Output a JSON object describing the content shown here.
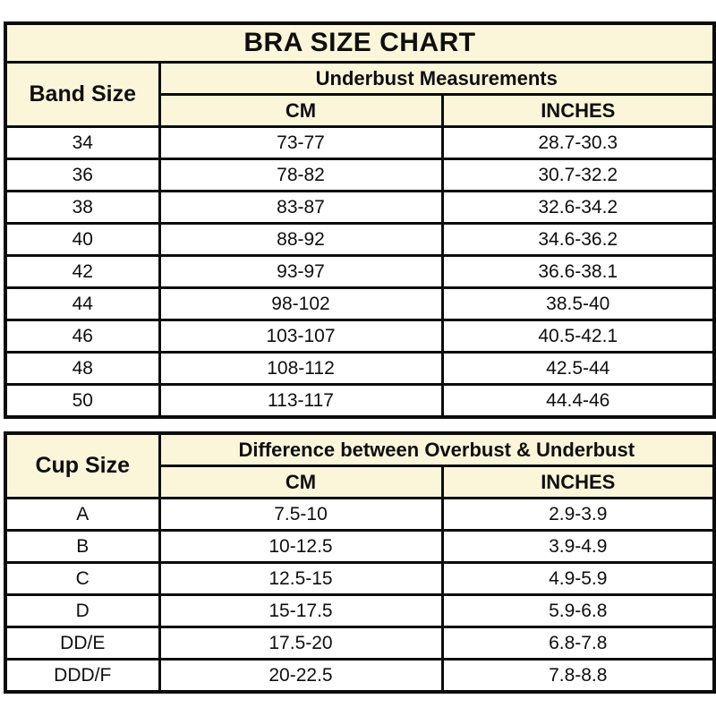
{
  "colors": {
    "header_bg": "#fbf6da",
    "row_bg": "#ffffff",
    "border": "#0c0c0c",
    "text": "#0f0f0f",
    "page_bg": "#ffffff"
  },
  "band_table": {
    "title": "BRA SIZE CHART",
    "row_header": "Band Size",
    "group_header": "Underbust Measurements",
    "col_cm": "CM",
    "col_inches": "INCHES",
    "rows": [
      {
        "size": "34",
        "cm": "73-77",
        "inches": "28.7-30.3"
      },
      {
        "size": "36",
        "cm": "78-82",
        "inches": "30.7-32.2"
      },
      {
        "size": "38",
        "cm": "83-87",
        "inches": "32.6-34.2"
      },
      {
        "size": "40",
        "cm": "88-92",
        "inches": "34.6-36.2"
      },
      {
        "size": "42",
        "cm": "93-97",
        "inches": "36.6-38.1"
      },
      {
        "size": "44",
        "cm": "98-102",
        "inches": "38.5-40"
      },
      {
        "size": "46",
        "cm": "103-107",
        "inches": "40.5-42.1"
      },
      {
        "size": "48",
        "cm": "108-112",
        "inches": "42.5-44"
      },
      {
        "size": "50",
        "cm": "113-117",
        "inches": "44.4-46"
      }
    ]
  },
  "cup_table": {
    "row_header": "Cup Size",
    "group_header": "Difference between Overbust & Underbust",
    "col_cm": "CM",
    "col_inches": "INCHES",
    "rows": [
      {
        "size": "A",
        "cm": "7.5-10",
        "inches": "2.9-3.9"
      },
      {
        "size": "B",
        "cm": "10-12.5",
        "inches": "3.9-4.9"
      },
      {
        "size": "C",
        "cm": "12.5-15",
        "inches": "4.9-5.9"
      },
      {
        "size": "D",
        "cm": "15-17.5",
        "inches": "5.9-6.8"
      },
      {
        "size": "DD/E",
        "cm": "17.5-20",
        "inches": "6.8-7.8"
      },
      {
        "size": "DDD/F",
        "cm": "20-22.5",
        "inches": "7.8-8.8"
      }
    ]
  },
  "chart_data": [
    {
      "type": "table",
      "title": "BRA SIZE CHART",
      "group_header": "Underbust Measurements",
      "columns": [
        "Band Size",
        "CM",
        "INCHES"
      ],
      "rows": [
        [
          "34",
          "73-77",
          "28.7-30.3"
        ],
        [
          "36",
          "78-82",
          "30.7-32.2"
        ],
        [
          "38",
          "83-87",
          "32.6-34.2"
        ],
        [
          "40",
          "88-92",
          "34.6-36.2"
        ],
        [
          "42",
          "93-97",
          "36.6-38.1"
        ],
        [
          "44",
          "98-102",
          "38.5-40"
        ],
        [
          "46",
          "103-107",
          "40.5-42.1"
        ],
        [
          "48",
          "108-112",
          "42.5-44"
        ],
        [
          "50",
          "113-117",
          "44.4-46"
        ]
      ]
    },
    {
      "type": "table",
      "title": "",
      "group_header": "Difference between Overbust & Underbust",
      "columns": [
        "Cup Size",
        "CM",
        "INCHES"
      ],
      "rows": [
        [
          "A",
          "7.5-10",
          "2.9-3.9"
        ],
        [
          "B",
          "10-12.5",
          "3.9-4.9"
        ],
        [
          "C",
          "12.5-15",
          "4.9-5.9"
        ],
        [
          "D",
          "15-17.5",
          "5.9-6.8"
        ],
        [
          "DD/E",
          "17.5-20",
          "6.8-7.8"
        ],
        [
          "DDD/F",
          "20-22.5",
          "7.8-8.8"
        ]
      ]
    }
  ]
}
